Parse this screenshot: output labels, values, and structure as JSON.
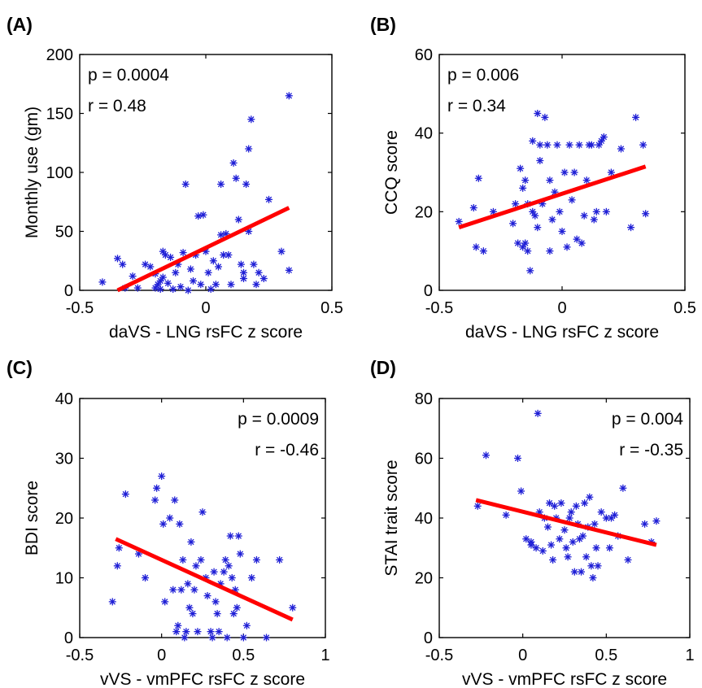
{
  "chart_data": [
    {
      "type": "scatter",
      "panel": "(A)",
      "xlabel": "daVS - LNG rsFC z score",
      "ylabel": "Monthly use (gm)",
      "xlim": [
        -0.5,
        0.5
      ],
      "ylim": [
        0,
        200
      ],
      "xticks": [
        -0.5,
        0,
        0.5
      ],
      "yticks": [
        0,
        50,
        100,
        150,
        200
      ],
      "xtick_labels": [
        "-0.5",
        "0",
        "0.5"
      ],
      "ytick_labels": [
        "0",
        "50",
        "100",
        "150",
        "200"
      ],
      "stats": [
        "p = 0.0004",
        "r = 0.48"
      ],
      "stats_position": "top-left",
      "fit_line": {
        "x": [
          -0.35,
          0.33
        ],
        "y": [
          0,
          70
        ]
      },
      "points": [
        [
          -0.41,
          7
        ],
        [
          -0.35,
          27
        ],
        [
          -0.33,
          22
        ],
        [
          -0.32,
          2
        ],
        [
          -0.29,
          12
        ],
        [
          -0.27,
          2
        ],
        [
          -0.24,
          22
        ],
        [
          -0.2,
          14
        ],
        [
          -0.19,
          5
        ],
        [
          -0.18,
          1
        ],
        [
          -0.17,
          11
        ],
        [
          -0.17,
          33
        ],
        [
          -0.16,
          30
        ],
        [
          -0.15,
          6
        ],
        [
          -0.14,
          28
        ],
        [
          -0.13,
          1
        ],
        [
          -0.12,
          15
        ],
        [
          -0.11,
          22
        ],
        [
          -0.1,
          3
        ],
        [
          -0.09,
          32
        ],
        [
          -0.08,
          90
        ],
        [
          -0.07,
          0
        ],
        [
          -0.06,
          18
        ],
        [
          -0.05,
          8
        ],
        [
          -0.04,
          30
        ],
        [
          -0.03,
          63
        ],
        [
          -0.02,
          5
        ],
        [
          -0.01,
          64
        ],
        [
          0.0,
          33
        ],
        [
          0.01,
          15
        ],
        [
          0.02,
          1
        ],
        [
          0.03,
          25
        ],
        [
          0.04,
          5
        ],
        [
          0.05,
          20
        ],
        [
          0.06,
          47
        ],
        [
          0.06,
          90
        ],
        [
          0.07,
          30
        ],
        [
          0.08,
          48
        ],
        [
          0.09,
          30
        ],
        [
          0.1,
          5
        ],
        [
          0.11,
          108
        ],
        [
          0.12,
          95
        ],
        [
          0.13,
          60
        ],
        [
          0.14,
          22
        ],
        [
          0.15,
          10
        ],
        [
          0.15,
          15
        ],
        [
          0.16,
          90
        ],
        [
          0.17,
          120
        ],
        [
          0.17,
          50
        ],
        [
          0.18,
          145
        ],
        [
          0.19,
          22
        ],
        [
          0.2,
          5
        ],
        [
          0.21,
          15
        ],
        [
          0.23,
          10
        ],
        [
          0.25,
          77
        ],
        [
          0.3,
          33
        ],
        [
          0.33,
          17
        ],
        [
          0.33,
          165
        ],
        [
          -0.2,
          2
        ],
        [
          -0.18,
          8
        ],
        [
          -0.22,
          20
        ]
      ]
    },
    {
      "type": "scatter",
      "panel": "(B)",
      "xlabel": "daVS - LNG rsFC z score",
      "ylabel": "CCQ score",
      "xlim": [
        -0.5,
        0.5
      ],
      "ylim": [
        0,
        60
      ],
      "xticks": [
        -0.5,
        0,
        0.5
      ],
      "yticks": [
        0,
        20,
        40,
        60
      ],
      "xtick_labels": [
        "-0.5",
        "0",
        "0.5"
      ],
      "ytick_labels": [
        "0",
        "20",
        "40",
        "60"
      ],
      "stats": [
        "p = 0.006",
        "r = 0.34"
      ],
      "stats_position": "top-left",
      "fit_line": {
        "x": [
          -0.42,
          0.34
        ],
        "y": [
          16,
          31.5
        ]
      },
      "points": [
        [
          -0.42,
          17.5
        ],
        [
          -0.36,
          21
        ],
        [
          -0.35,
          11
        ],
        [
          -0.34,
          28.5
        ],
        [
          -0.32,
          10
        ],
        [
          -0.28,
          20
        ],
        [
          -0.2,
          17
        ],
        [
          -0.19,
          22
        ],
        [
          -0.18,
          12
        ],
        [
          -0.17,
          31
        ],
        [
          -0.16,
          26
        ],
        [
          -0.16,
          11
        ],
        [
          -0.15,
          28
        ],
        [
          -0.15,
          12
        ],
        [
          -0.14,
          10
        ],
        [
          -0.14,
          22
        ],
        [
          -0.13,
          5
        ],
        [
          -0.12,
          20
        ],
        [
          -0.11,
          19
        ],
        [
          -0.1,
          16
        ],
        [
          -0.1,
          45
        ],
        [
          -0.09,
          37
        ],
        [
          -0.09,
          33
        ],
        [
          -0.08,
          22
        ],
        [
          -0.07,
          44
        ],
        [
          -0.06,
          37
        ],
        [
          -0.05,
          10
        ],
        [
          -0.04,
          18
        ],
        [
          -0.03,
          25
        ],
        [
          -0.02,
          37
        ],
        [
          -0.01,
          20
        ],
        [
          0.0,
          15
        ],
        [
          0.01,
          30
        ],
        [
          0.02,
          11
        ],
        [
          0.03,
          37
        ],
        [
          0.04,
          23
        ],
        [
          0.05,
          30
        ],
        [
          0.06,
          13
        ],
        [
          0.07,
          37
        ],
        [
          0.08,
          12
        ],
        [
          0.09,
          19
        ],
        [
          0.1,
          28
        ],
        [
          0.11,
          37
        ],
        [
          0.12,
          37
        ],
        [
          0.13,
          18
        ],
        [
          0.14,
          20
        ],
        [
          0.15,
          37
        ],
        [
          0.16,
          38
        ],
        [
          0.17,
          39
        ],
        [
          0.18,
          20
        ],
        [
          0.2,
          30
        ],
        [
          0.24,
          36
        ],
        [
          0.28,
          16
        ],
        [
          0.3,
          44
        ],
        [
          0.33,
          37
        ],
        [
          0.34,
          19.5
        ],
        [
          -0.05,
          28
        ],
        [
          -0.12,
          38
        ]
      ]
    },
    {
      "type": "scatter",
      "panel": "(C)",
      "xlabel": "vVS - vmPFC rsFC z score",
      "ylabel": "BDI score",
      "xlim": [
        -0.5,
        1
      ],
      "ylim": [
        0,
        40
      ],
      "xticks": [
        -0.5,
        0,
        0.5,
        1
      ],
      "yticks": [
        0,
        10,
        20,
        30,
        40
      ],
      "xtick_labels": [
        "-0.5",
        "0",
        "0.5",
        "1"
      ],
      "ytick_labels": [
        "0",
        "10",
        "20",
        "30",
        "40"
      ],
      "stats": [
        "p = 0.0009",
        "r = -0.46"
      ],
      "stats_position": "top-right",
      "fit_line": {
        "x": [
          -0.28,
          0.8
        ],
        "y": [
          16.5,
          3
        ]
      },
      "points": [
        [
          -0.3,
          6
        ],
        [
          -0.27,
          12
        ],
        [
          -0.26,
          15
        ],
        [
          -0.22,
          24
        ],
        [
          -0.14,
          14
        ],
        [
          -0.1,
          10
        ],
        [
          -0.04,
          23
        ],
        [
          -0.03,
          25
        ],
        [
          0.0,
          27
        ],
        [
          0.01,
          19
        ],
        [
          0.02,
          6
        ],
        [
          0.05,
          20
        ],
        [
          0.07,
          8
        ],
        [
          0.08,
          23
        ],
        [
          0.09,
          1
        ],
        [
          0.1,
          2
        ],
        [
          0.11,
          19
        ],
        [
          0.12,
          8
        ],
        [
          0.13,
          13
        ],
        [
          0.14,
          0
        ],
        [
          0.15,
          1
        ],
        [
          0.16,
          9
        ],
        [
          0.17,
          5
        ],
        [
          0.18,
          16
        ],
        [
          0.19,
          4
        ],
        [
          0.2,
          8
        ],
        [
          0.21,
          12
        ],
        [
          0.22,
          1
        ],
        [
          0.24,
          13
        ],
        [
          0.25,
          21
        ],
        [
          0.27,
          10
        ],
        [
          0.28,
          7
        ],
        [
          0.3,
          1
        ],
        [
          0.31,
          0
        ],
        [
          0.32,
          11
        ],
        [
          0.33,
          6
        ],
        [
          0.34,
          4
        ],
        [
          0.35,
          1
        ],
        [
          0.36,
          9
        ],
        [
          0.38,
          11
        ],
        [
          0.39,
          13
        ],
        [
          0.4,
          0
        ],
        [
          0.41,
          12
        ],
        [
          0.42,
          17
        ],
        [
          0.43,
          10
        ],
        [
          0.44,
          4
        ],
        [
          0.45,
          8
        ],
        [
          0.46,
          5
        ],
        [
          0.47,
          17
        ],
        [
          0.48,
          14
        ],
        [
          0.5,
          0
        ],
        [
          0.52,
          2
        ],
        [
          0.55,
          10
        ],
        [
          0.58,
          13
        ],
        [
          0.64,
          0
        ],
        [
          0.72,
          13
        ],
        [
          0.8,
          5
        ]
      ]
    },
    {
      "type": "scatter",
      "panel": "(D)",
      "xlabel": "vVS - vmPFC rsFC z score",
      "ylabel": "STAI trait score",
      "xlim": [
        -0.5,
        1
      ],
      "ylim": [
        0,
        80
      ],
      "xticks": [
        -0.5,
        0,
        0.5,
        1
      ],
      "yticks": [
        0,
        20,
        40,
        60,
        80
      ],
      "xtick_labels": [
        "-0.5",
        "0",
        "0.5",
        "1"
      ],
      "ytick_labels": [
        "0",
        "20",
        "40",
        "60",
        "80"
      ],
      "stats": [
        "p = 0.004",
        "r = -0.35"
      ],
      "stats_position": "top-right",
      "fit_line": {
        "x": [
          -0.28,
          0.8
        ],
        "y": [
          46,
          31
        ]
      },
      "points": [
        [
          -0.27,
          44
        ],
        [
          -0.22,
          61
        ],
        [
          -0.1,
          41
        ],
        [
          -0.03,
          60
        ],
        [
          -0.01,
          49
        ],
        [
          0.02,
          33
        ],
        [
          0.05,
          32
        ],
        [
          0.08,
          30
        ],
        [
          0.09,
          75
        ],
        [
          0.1,
          42
        ],
        [
          0.12,
          29
        ],
        [
          0.13,
          40
        ],
        [
          0.15,
          37
        ],
        [
          0.16,
          45
        ],
        [
          0.17,
          31
        ],
        [
          0.18,
          26
        ],
        [
          0.19,
          44
        ],
        [
          0.2,
          40
        ],
        [
          0.22,
          33
        ],
        [
          0.23,
          45
        ],
        [
          0.25,
          36
        ],
        [
          0.26,
          30
        ],
        [
          0.28,
          40
        ],
        [
          0.29,
          42
        ],
        [
          0.3,
          32
        ],
        [
          0.31,
          22
        ],
        [
          0.32,
          44
        ],
        [
          0.33,
          38
        ],
        [
          0.34,
          33
        ],
        [
          0.35,
          22
        ],
        [
          0.36,
          34
        ],
        [
          0.37,
          45
        ],
        [
          0.38,
          27
        ],
        [
          0.39,
          37
        ],
        [
          0.4,
          47
        ],
        [
          0.41,
          24
        ],
        [
          0.42,
          20
        ],
        [
          0.43,
          38
        ],
        [
          0.44,
          30
        ],
        [
          0.45,
          24
        ],
        [
          0.47,
          42
        ],
        [
          0.5,
          40
        ],
        [
          0.52,
          30
        ],
        [
          0.53,
          40
        ],
        [
          0.55,
          41
        ],
        [
          0.57,
          34
        ],
        [
          0.6,
          50
        ],
        [
          0.63,
          26
        ],
        [
          0.73,
          38
        ],
        [
          0.77,
          32
        ],
        [
          0.8,
          39
        ],
        [
          0.05,
          31
        ],
        [
          0.27,
          27
        ]
      ]
    }
  ]
}
